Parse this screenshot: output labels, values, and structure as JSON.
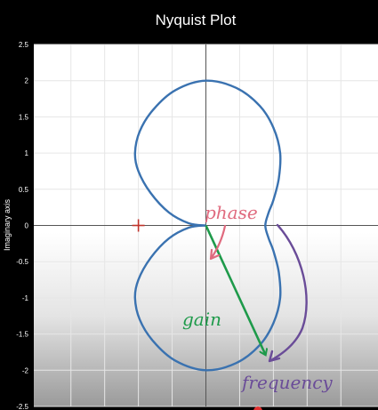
{
  "chart_data": {
    "type": "line",
    "title": "Nyquist Plot",
    "xlabel": "",
    "ylabel": "Imaginary axis",
    "xlim": [
      -2.55,
      2.55
    ],
    "ylim": [
      -2.5,
      2.5
    ],
    "yticks": [
      2.5,
      2,
      1.5,
      1,
      0.5,
      0,
      -0.5,
      -1,
      -1.5,
      -2,
      -2.5
    ],
    "ytick_labels": [
      "2.5",
      "2",
      "1.5",
      "1",
      "0.5",
      "0",
      "-0.5",
      "-1",
      "-1.5",
      "-2",
      "-2.5"
    ],
    "grid": true,
    "series": [
      {
        "color": "#3a72b0",
        "x": [
          0,
          -0.25,
          -0.55,
          -0.82,
          -1.0,
          -1.05,
          -0.98,
          -0.78,
          -0.45,
          0.0,
          0.45,
          0.8,
          1.0,
          1.1,
          1.08,
          1.0,
          0.93,
          0.88,
          0.93,
          1.0,
          1.08,
          1.1,
          1.0,
          0.8,
          0.45,
          0.0,
          -0.45,
          -0.78,
          -0.98,
          -1.05,
          -1.0,
          -0.82,
          -0.55,
          -0.25,
          0
        ],
        "y": [
          0,
          0.03,
          0.18,
          0.45,
          0.75,
          1.0,
          1.3,
          1.6,
          1.87,
          2.0,
          1.9,
          1.65,
          1.35,
          1.0,
          0.65,
          0.35,
          0.18,
          0.0,
          -0.18,
          -0.35,
          -0.65,
          -1.0,
          -1.35,
          -1.65,
          -1.9,
          -2.0,
          -1.87,
          -1.6,
          -1.3,
          -1.0,
          -0.75,
          -0.45,
          -0.18,
          -0.03,
          0
        ]
      }
    ],
    "critical_point": {
      "x": -1,
      "y": 0,
      "color": "#c0332b"
    },
    "annotations": [
      {
        "text": "phase",
        "color": "#e06a7e"
      },
      {
        "text": "gain",
        "color": "#1e9a4a"
      },
      {
        "text": "frequency",
        "color": "#6a4c98"
      }
    ],
    "gain_arrow": {
      "from": [
        0,
        0
      ],
      "to": [
        0.88,
        -1.78
      ],
      "color": "#1e9a4a"
    }
  }
}
